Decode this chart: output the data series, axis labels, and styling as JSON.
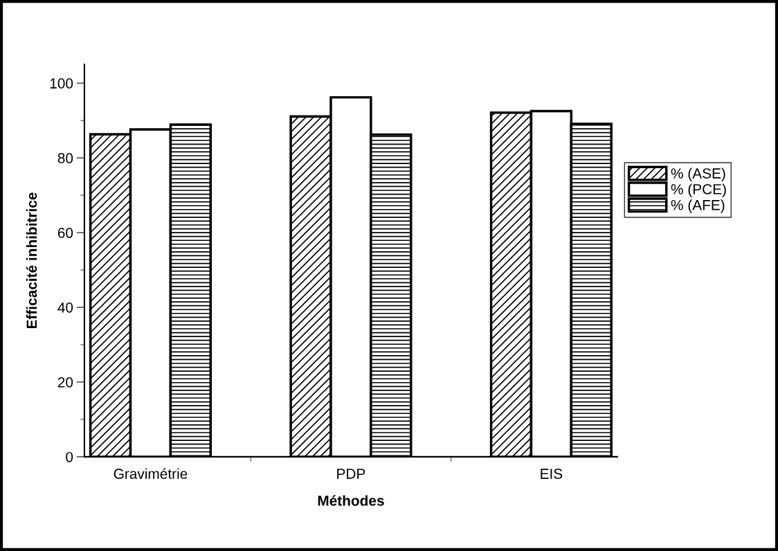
{
  "chart_data": {
    "type": "bar",
    "xlabel": "Méthodes",
    "ylabel": "Efficacité inhibitrice",
    "categories": [
      "Gravimétrie",
      "PDP",
      "EIS"
    ],
    "series": [
      {
        "name": "% (ASE)",
        "color": "#000000",
        "values": [
          86.3,
          91.1,
          92.1
        ]
      },
      {
        "name": "% (PCE)",
        "color": "#000000",
        "values": [
          87.6,
          96.2,
          92.5
        ]
      },
      {
        "name": "% (AFE)",
        "color": "#000000",
        "values": [
          88.9,
          86.2,
          89.1
        ]
      }
    ],
    "ylim": [
      0,
      105
    ],
    "yticks": [
      0,
      20,
      40,
      60,
      80,
      100
    ],
    "grid": false,
    "legend": "right"
  }
}
